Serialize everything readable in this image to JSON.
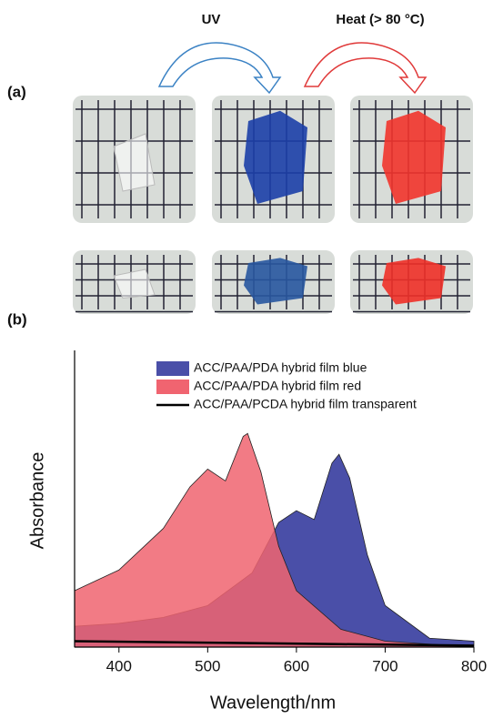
{
  "panel_a": {
    "label": "(a)",
    "arrow_labels": [
      "UV",
      "Heat (> 80 °C)"
    ]
  },
  "chart_data": {
    "type": "area",
    "panel_label": "(b)",
    "x_label": "Wavelength/nm",
    "y_label": "Absorbance",
    "xlim": [
      350,
      800
    ],
    "xticks": [
      400,
      500,
      600,
      700,
      800
    ],
    "ylim": [
      0,
      1
    ],
    "series": [
      {
        "name": "ACC/PAA/PDA hybrid film blue",
        "color": "#4a4fa8",
        "filled": true,
        "x": [
          350,
          400,
          450,
          500,
          550,
          580,
          600,
          620,
          640,
          648,
          660,
          680,
          700,
          750,
          800
        ],
        "values": [
          0.07,
          0.08,
          0.1,
          0.14,
          0.25,
          0.42,
          0.46,
          0.43,
          0.62,
          0.65,
          0.57,
          0.31,
          0.14,
          0.03,
          0.02
        ]
      },
      {
        "name": "ACC/PAA/PDA hybrid film red",
        "color": "#f06470",
        "filled": true,
        "x": [
          350,
          400,
          450,
          480,
          500,
          520,
          540,
          545,
          560,
          580,
          600,
          650,
          700,
          800
        ],
        "values": [
          0.19,
          0.26,
          0.4,
          0.54,
          0.6,
          0.56,
          0.71,
          0.72,
          0.59,
          0.34,
          0.19,
          0.06,
          0.02,
          0.0
        ]
      },
      {
        "name": "ACC/PAA/PCDA hybrid film transparent",
        "color": "#000000",
        "filled": false,
        "x": [
          350,
          500,
          650,
          800
        ],
        "values": [
          0.02,
          0.015,
          0.01,
          0.005
        ]
      }
    ]
  }
}
